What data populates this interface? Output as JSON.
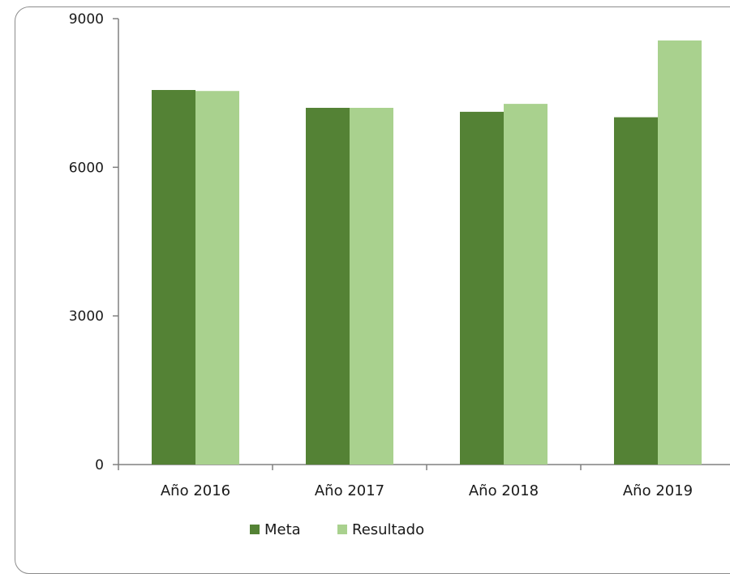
{
  "chart_data": {
    "type": "bar",
    "title": "",
    "xlabel": "",
    "ylabel": "",
    "categories": [
      "Año 2016",
      "Año 2017",
      "Año 2018",
      "Año 2019"
    ],
    "series": [
      {
        "name": "Meta",
        "values": [
          7560,
          7200,
          7120,
          7010
        ],
        "color": "#548235"
      },
      {
        "name": "Resultado",
        "values": [
          7540,
          7200,
          7280,
          8560
        ],
        "color": "#a9d18e"
      }
    ],
    "ylim": [
      0,
      9000
    ],
    "yticks": [
      0,
      3000,
      6000,
      9000
    ],
    "ytick_labels": [
      "0",
      "3000",
      "6000",
      "9000"
    ],
    "grid": false,
    "legend_position": "bottom"
  }
}
